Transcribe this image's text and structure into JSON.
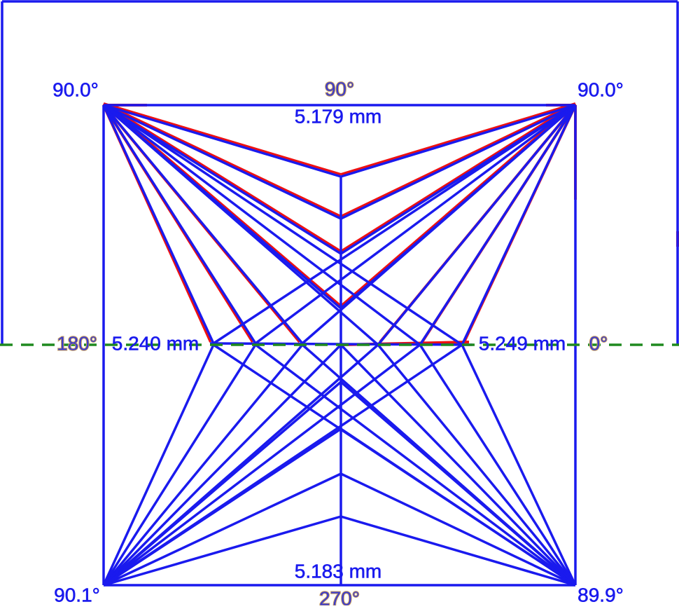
{
  "corners": {
    "top_left": "90.0°",
    "top_right": "90.0°",
    "bottom_left": "90.1°",
    "bottom_right": "89.9°"
  },
  "directions": {
    "top": "90°",
    "left": "180°",
    "right": "0°",
    "bottom": "270°"
  },
  "edges": {
    "top": "5.179 mm",
    "left": "5.240 mm",
    "right": "5.249 mm",
    "bottom": "5.183 mm"
  }
}
